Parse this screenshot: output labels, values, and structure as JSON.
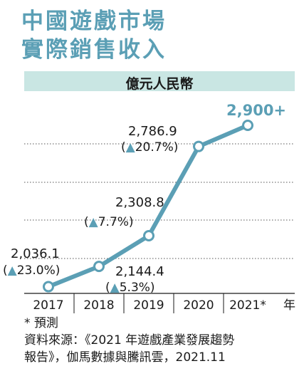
{
  "title": {
    "line1": "中國遊戲市場",
    "line2": "實際銷售收入"
  },
  "unit_label": "億元人民幣",
  "colors": {
    "accent": "#5b9fb5",
    "band": "#c9e6e3",
    "text": "#1a1a1a"
  },
  "chart_data": {
    "type": "line",
    "title": "中國遊戲市場實際銷售收入",
    "ylabel": "億元人民幣",
    "xlabel": "年",
    "categories": [
      "2017",
      "2018",
      "2019",
      "2020",
      "2021*"
    ],
    "values": [
      2036.1,
      2144.4,
      2308.8,
      2786.9,
      2900
    ],
    "value_labels": [
      "2,036.1",
      "2,144.4",
      "2,308.8",
      "2,786.9",
      "2,900+"
    ],
    "growth_labels": [
      "(▲23.0%)",
      "(▲5.3%)",
      "(▲7.7%)",
      "(▲20.7%)",
      ""
    ],
    "grid": "horizontal dotted"
  },
  "footnote": "* 預測",
  "source": {
    "line1": "資料來源：《2021 年遊戲產業發展趨勢",
    "line2": "報告》，伽馬數據與騰訊雲，2021.11"
  }
}
